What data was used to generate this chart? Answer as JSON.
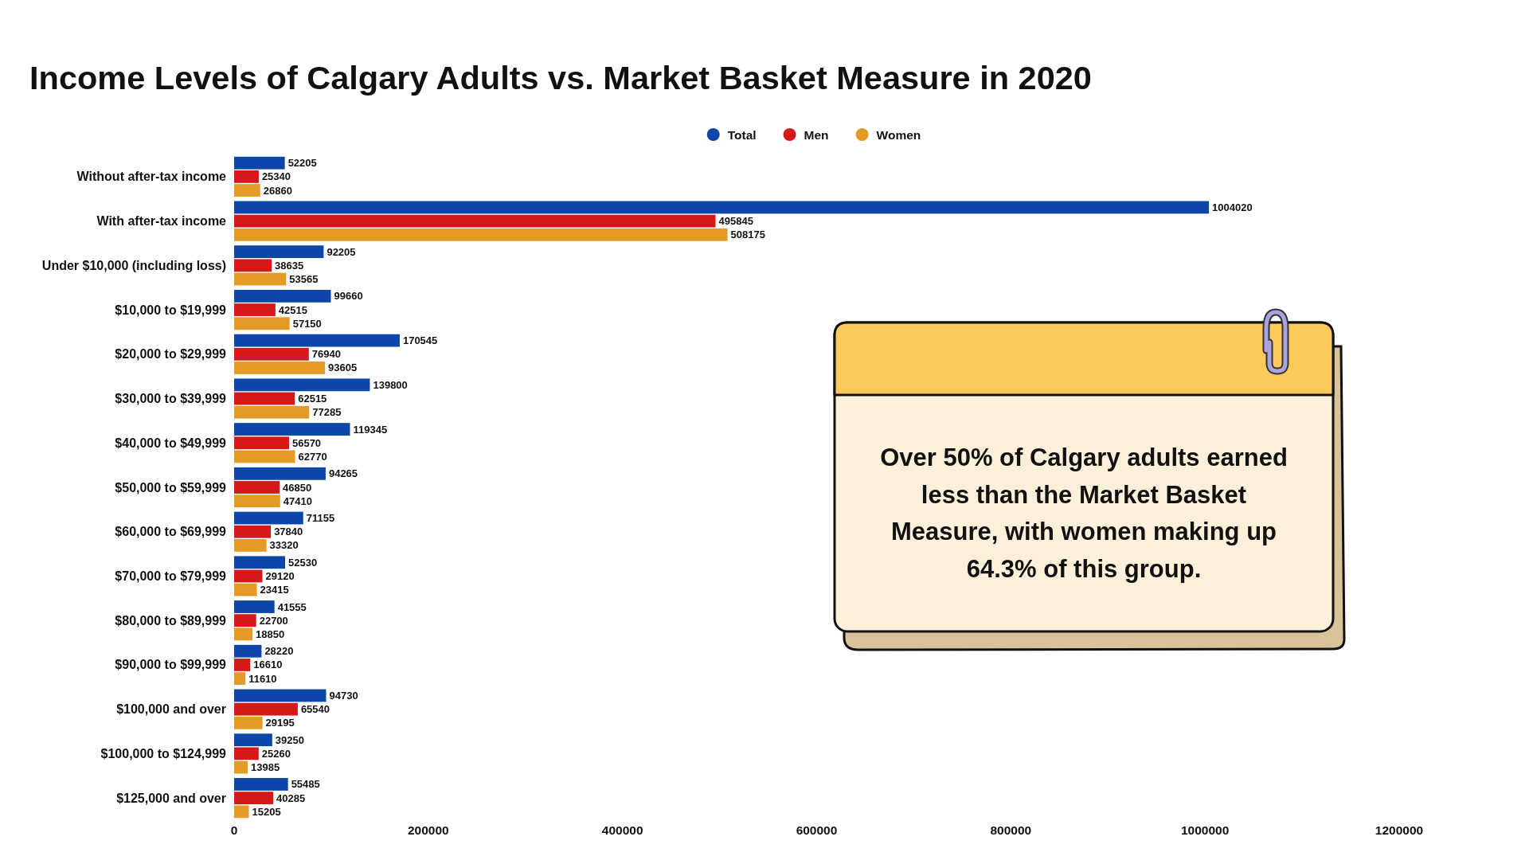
{
  "chart_data": {
    "type": "bar",
    "orientation": "horizontal",
    "title": "Income Levels of Calgary Adults vs. Market Basket Measure in 2020",
    "categories": [
      "Without after-tax income",
      "With after-tax income",
      "Under $10,000 (including loss)",
      "$10,000 to $19,999",
      "$20,000 to $29,999",
      "$30,000 to $39,999",
      "$40,000 to $49,999",
      "$50,000 to $59,999",
      "$60,000 to $69,999",
      "$70,000 to $79,999",
      "$80,000 to $89,999",
      "$90,000 to $99,999",
      "$100,000 and over",
      "$100,000 to $124,999",
      "$125,000 and over"
    ],
    "series": [
      {
        "name": "Total",
        "color": "#0b46a8",
        "values": [
          52205,
          1004020,
          92205,
          99660,
          170545,
          139800,
          119345,
          94265,
          71155,
          52530,
          41555,
          28220,
          94730,
          39250,
          55485
        ]
      },
      {
        "name": "Men",
        "color": "#d51818",
        "values": [
          25340,
          495845,
          38635,
          42515,
          76940,
          62515,
          56570,
          46850,
          37840,
          29120,
          22700,
          16610,
          65540,
          25260,
          40285
        ]
      },
      {
        "name": "Women",
        "color": "#e39b26",
        "values": [
          26860,
          508175,
          53565,
          57150,
          93605,
          77285,
          62770,
          47410,
          33320,
          23415,
          18850,
          11610,
          29195,
          13985,
          15205
        ]
      }
    ],
    "xlim": [
      0,
      1200000
    ],
    "xticks": [
      0,
      200000,
      400000,
      600000,
      800000,
      1000000,
      1200000
    ],
    "data_labels": true,
    "legend": "top",
    "annotations": [
      "Over 50% of Calgary adults earned less than the Market Basket Measure, with women making up 64.3% of this group."
    ]
  }
}
